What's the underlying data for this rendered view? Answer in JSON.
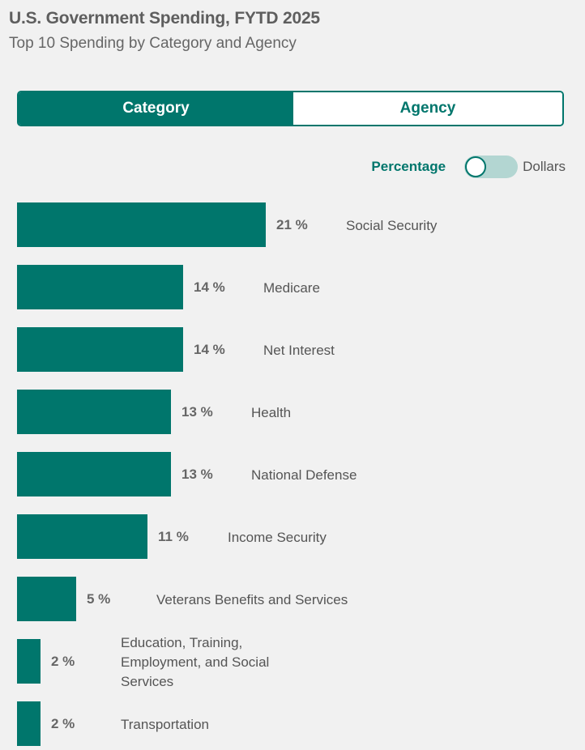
{
  "header": {
    "title": "U.S. Government Spending, FYTD 2025",
    "subtitle": "Top 10 Spending by Category and Agency"
  },
  "tabs": [
    {
      "label": "Category",
      "active": true
    },
    {
      "label": "Agency",
      "active": false
    }
  ],
  "toggle": {
    "left_label": "Percentage",
    "right_label": "Dollars",
    "selected": "Percentage"
  },
  "colors": {
    "accent": "#00766c",
    "toggle_track": "#b3d6d2",
    "background": "#f1f1f1"
  },
  "chart_data": {
    "type": "bar",
    "orientation": "horizontal",
    "categories": [
      "Social Security",
      "Medicare",
      "Net Interest",
      "Health",
      "National Defense",
      "Income Security",
      "Veterans Benefits and Services",
      "Education, Training, Employment, and Social Services",
      "Transportation"
    ],
    "values": [
      21,
      14,
      14,
      13,
      13,
      11,
      5,
      2,
      2
    ],
    "value_labels": [
      "21 %",
      "14 %",
      "14 %",
      "13 %",
      "13 %",
      "11 %",
      "5 %",
      "2 %",
      "2 %"
    ],
    "unit": "%",
    "grid": false
  }
}
